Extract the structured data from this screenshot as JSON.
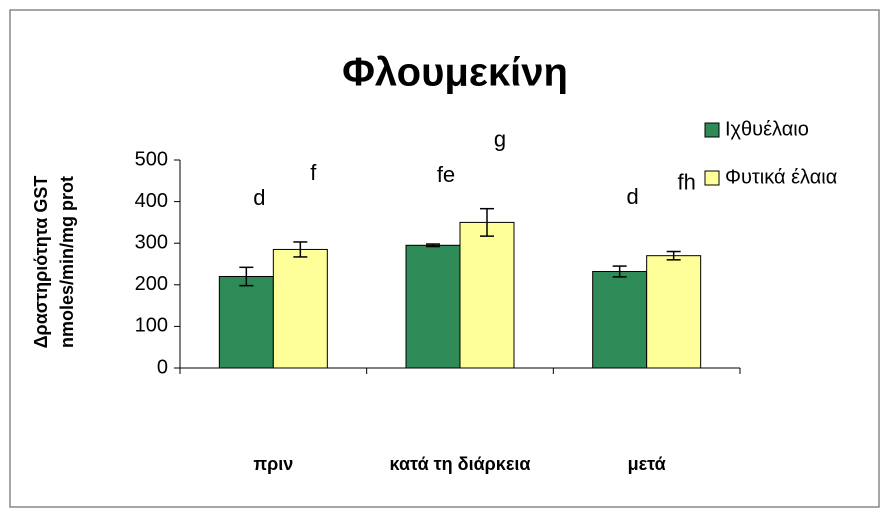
{
  "chart_data": {
    "type": "bar",
    "title": "Φλουμεκίνη",
    "y_label": [
      "Δραστηριότητα GST",
      "nmoles/min/mg prot"
    ],
    "categories": [
      "πριν",
      "κατά τη διάρκεια",
      "μετά"
    ],
    "series": [
      {
        "name": "Ιχθυέλαιο",
        "color": "#2e8b57",
        "values": [
          220,
          295,
          232
        ],
        "errors": [
          22,
          3,
          13
        ],
        "labels": [
          "d",
          "fe",
          "d"
        ]
      },
      {
        "name": "Φυτικά έλαια",
        "color": "#ffff99",
        "values": [
          285,
          350,
          270
        ],
        "errors": [
          18,
          33,
          10
        ],
        "labels": [
          "f",
          "g",
          "fh"
        ]
      }
    ],
    "ylim": [
      0,
      500
    ],
    "yticks": [
      0,
      100,
      200,
      300,
      400,
      500
    ],
    "grid": false,
    "legend": "right"
  }
}
